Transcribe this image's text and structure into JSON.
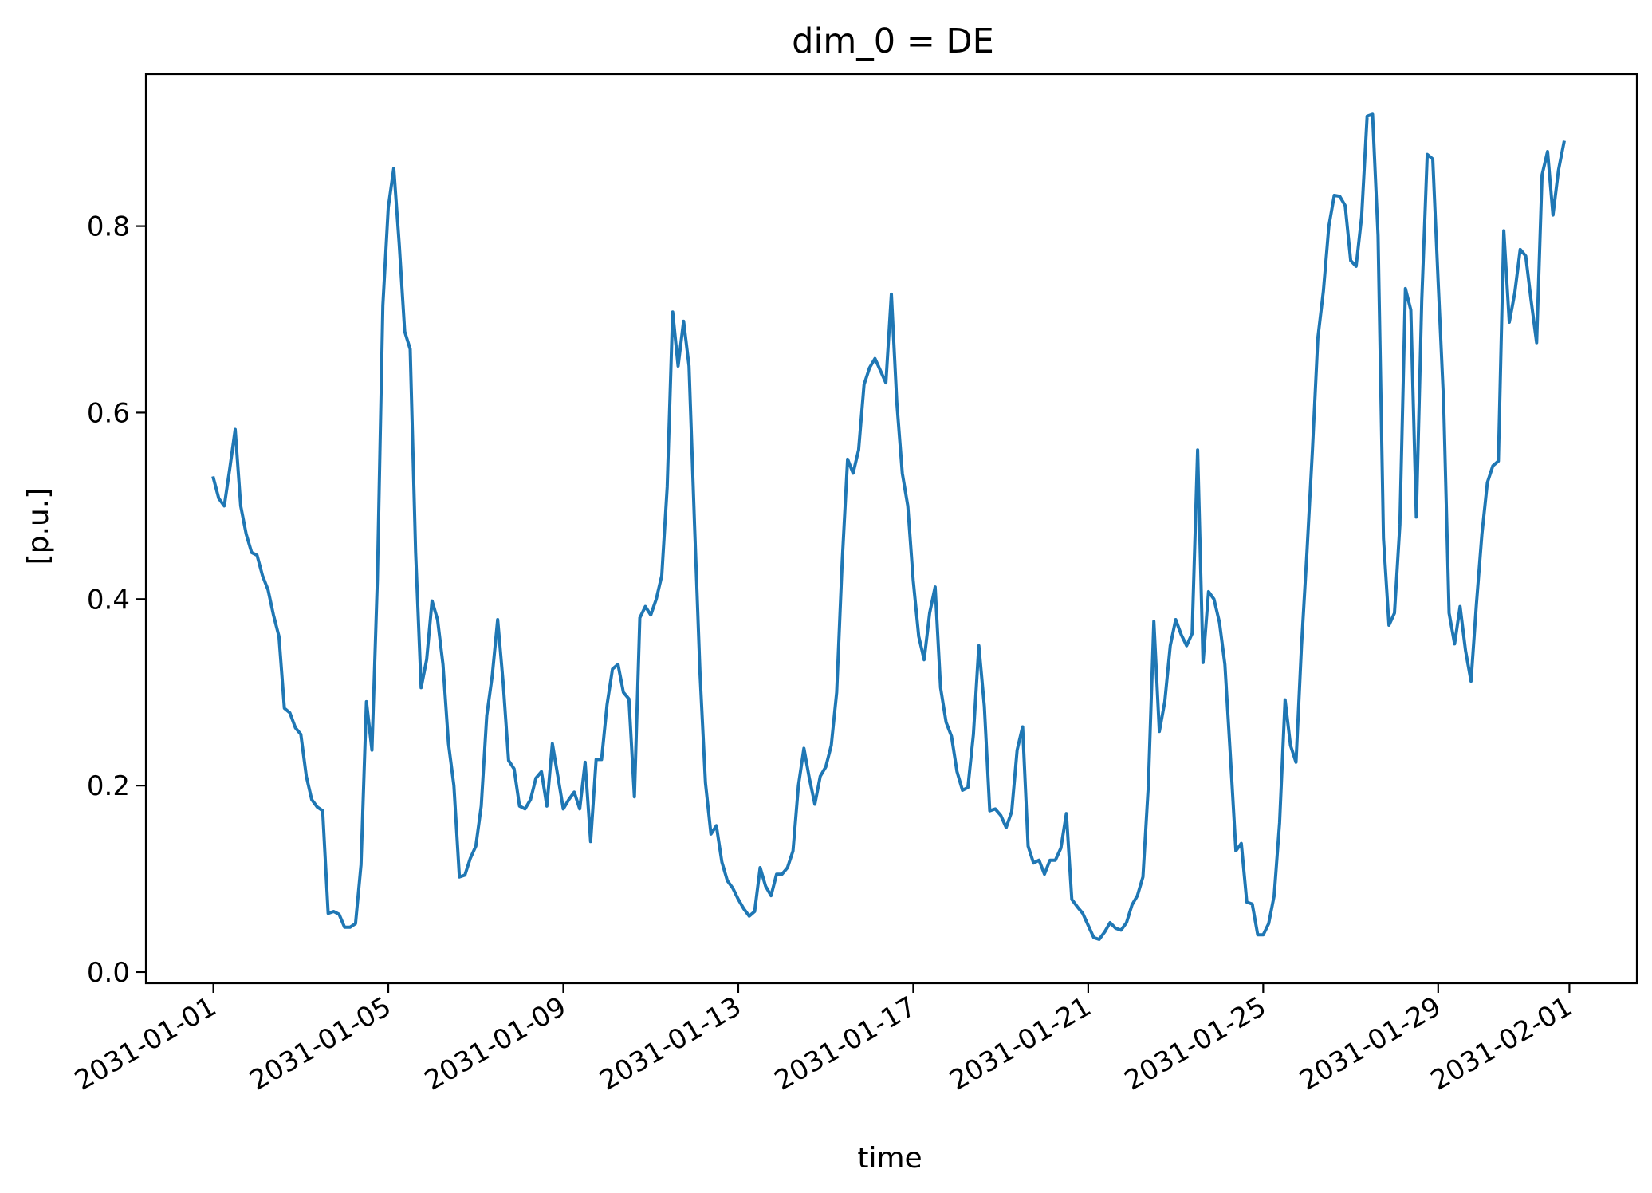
{
  "chart_data": {
    "type": "line",
    "title": "dim_0 = DE",
    "xlabel": "time",
    "ylabel": "[p.u.]",
    "x_ticks": [
      "2031-01-01",
      "2031-01-05",
      "2031-01-09",
      "2031-01-13",
      "2031-01-17",
      "2031-01-21",
      "2031-01-25",
      "2031-01-29",
      "2031-02-01"
    ],
    "y_ticks": [
      "0.0",
      "0.2",
      "0.4",
      "0.6",
      "0.8"
    ],
    "xlim": [
      "2030-12-30T11:00",
      "2031-02-02T13:00"
    ],
    "ylim": [
      -0.012,
      0.963
    ],
    "grid": false,
    "color": "#1f77b4",
    "series": [
      {
        "x": [
          "2031-01-01T00:00",
          "2031-01-01T03:00",
          "2031-01-01T06:00",
          "2031-01-01T09:00",
          "2031-01-01T12:00",
          "2031-01-01T15:00",
          "2031-01-01T18:00",
          "2031-01-01T21:00",
          "2031-01-02T00:00",
          "2031-01-02T03:00",
          "2031-01-02T06:00",
          "2031-01-02T09:00",
          "2031-01-02T12:00",
          "2031-01-02T15:00",
          "2031-01-02T18:00",
          "2031-01-02T21:00",
          "2031-01-03T00:00",
          "2031-01-03T03:00",
          "2031-01-03T06:00",
          "2031-01-03T09:00",
          "2031-01-03T12:00",
          "2031-01-03T15:00",
          "2031-01-03T18:00",
          "2031-01-03T21:00",
          "2031-01-04T00:00",
          "2031-01-04T03:00",
          "2031-01-04T06:00",
          "2031-01-04T09:00",
          "2031-01-04T12:00",
          "2031-01-04T15:00",
          "2031-01-04T18:00",
          "2031-01-04T21:00",
          "2031-01-05T00:00",
          "2031-01-05T03:00",
          "2031-01-05T06:00",
          "2031-01-05T09:00",
          "2031-01-05T12:00",
          "2031-01-05T15:00",
          "2031-01-05T18:00",
          "2031-01-05T21:00",
          "2031-01-06T00:00",
          "2031-01-06T03:00",
          "2031-01-06T06:00",
          "2031-01-06T09:00",
          "2031-01-06T12:00",
          "2031-01-06T15:00",
          "2031-01-06T18:00",
          "2031-01-06T21:00",
          "2031-01-07T00:00",
          "2031-01-07T03:00",
          "2031-01-07T06:00",
          "2031-01-07T09:00",
          "2031-01-07T12:00",
          "2031-01-07T15:00",
          "2031-01-07T18:00",
          "2031-01-07T21:00",
          "2031-01-08T00:00",
          "2031-01-08T03:00",
          "2031-01-08T06:00",
          "2031-01-08T09:00",
          "2031-01-08T12:00",
          "2031-01-08T15:00",
          "2031-01-08T18:00",
          "2031-01-08T21:00",
          "2031-01-09T00:00",
          "2031-01-09T03:00",
          "2031-01-09T06:00",
          "2031-01-09T09:00",
          "2031-01-09T12:00",
          "2031-01-09T15:00",
          "2031-01-09T18:00",
          "2031-01-09T21:00",
          "2031-01-10T00:00",
          "2031-01-10T03:00",
          "2031-01-10T06:00",
          "2031-01-10T09:00",
          "2031-01-10T12:00",
          "2031-01-10T15:00",
          "2031-01-10T18:00",
          "2031-01-10T21:00",
          "2031-01-11T00:00",
          "2031-01-11T03:00",
          "2031-01-11T06:00",
          "2031-01-11T09:00",
          "2031-01-11T12:00",
          "2031-01-11T15:00",
          "2031-01-11T18:00",
          "2031-01-11T21:00",
          "2031-01-12T00:00",
          "2031-01-12T03:00",
          "2031-01-12T06:00",
          "2031-01-12T09:00",
          "2031-01-12T12:00",
          "2031-01-12T15:00",
          "2031-01-12T18:00",
          "2031-01-12T21:00",
          "2031-01-13T00:00",
          "2031-01-13T03:00",
          "2031-01-13T06:00",
          "2031-01-13T09:00",
          "2031-01-13T12:00",
          "2031-01-13T15:00",
          "2031-01-13T18:00",
          "2031-01-13T21:00",
          "2031-01-14T00:00",
          "2031-01-14T03:00",
          "2031-01-14T06:00",
          "2031-01-14T09:00",
          "2031-01-14T12:00",
          "2031-01-14T15:00",
          "2031-01-14T18:00",
          "2031-01-14T21:00",
          "2031-01-15T00:00",
          "2031-01-15T03:00",
          "2031-01-15T06:00",
          "2031-01-15T09:00",
          "2031-01-15T12:00",
          "2031-01-15T15:00",
          "2031-01-15T18:00",
          "2031-01-15T21:00",
          "2031-01-16T00:00",
          "2031-01-16T03:00",
          "2031-01-16T06:00",
          "2031-01-16T09:00",
          "2031-01-16T12:00",
          "2031-01-16T15:00",
          "2031-01-16T18:00",
          "2031-01-16T21:00",
          "2031-01-17T00:00",
          "2031-01-17T03:00",
          "2031-01-17T06:00",
          "2031-01-17T09:00",
          "2031-01-17T12:00",
          "2031-01-17T15:00",
          "2031-01-17T18:00",
          "2031-01-17T21:00",
          "2031-01-18T00:00",
          "2031-01-18T03:00",
          "2031-01-18T06:00",
          "2031-01-18T09:00",
          "2031-01-18T12:00",
          "2031-01-18T15:00",
          "2031-01-18T18:00",
          "2031-01-18T21:00",
          "2031-01-19T00:00",
          "2031-01-19T03:00",
          "2031-01-19T06:00",
          "2031-01-19T09:00",
          "2031-01-19T12:00",
          "2031-01-19T15:00",
          "2031-01-19T18:00",
          "2031-01-19T21:00",
          "2031-01-20T00:00",
          "2031-01-20T03:00",
          "2031-01-20T06:00",
          "2031-01-20T09:00",
          "2031-01-20T12:00",
          "2031-01-20T15:00",
          "2031-01-20T18:00",
          "2031-01-20T21:00",
          "2031-01-21T00:00",
          "2031-01-21T03:00",
          "2031-01-21T06:00",
          "2031-01-21T09:00",
          "2031-01-21T12:00",
          "2031-01-21T15:00",
          "2031-01-21T18:00",
          "2031-01-21T21:00",
          "2031-01-22T00:00",
          "2031-01-22T03:00",
          "2031-01-22T06:00",
          "2031-01-22T09:00",
          "2031-01-22T12:00",
          "2031-01-22T15:00",
          "2031-01-22T18:00",
          "2031-01-22T21:00",
          "2031-01-23T00:00",
          "2031-01-23T03:00",
          "2031-01-23T06:00",
          "2031-01-23T09:00",
          "2031-01-23T12:00",
          "2031-01-23T15:00",
          "2031-01-23T18:00",
          "2031-01-23T21:00",
          "2031-01-24T00:00",
          "2031-01-24T03:00",
          "2031-01-24T06:00",
          "2031-01-24T09:00",
          "2031-01-24T12:00",
          "2031-01-24T15:00",
          "2031-01-24T18:00",
          "2031-01-24T21:00",
          "2031-01-25T00:00",
          "2031-01-25T03:00",
          "2031-01-25T06:00",
          "2031-01-25T09:00",
          "2031-01-25T12:00",
          "2031-01-25T15:00",
          "2031-01-25T18:00",
          "2031-01-25T21:00",
          "2031-01-26T00:00",
          "2031-01-26T03:00",
          "2031-01-26T06:00",
          "2031-01-26T09:00",
          "2031-01-26T12:00",
          "2031-01-26T15:00",
          "2031-01-26T18:00",
          "2031-01-26T21:00",
          "2031-01-27T00:00",
          "2031-01-27T03:00",
          "2031-01-27T06:00",
          "2031-01-27T09:00",
          "2031-01-27T12:00",
          "2031-01-27T15:00",
          "2031-01-27T18:00",
          "2031-01-27T21:00",
          "2031-01-28T00:00",
          "2031-01-28T03:00",
          "2031-01-28T06:00",
          "2031-01-28T09:00",
          "2031-01-28T12:00",
          "2031-01-28T15:00",
          "2031-01-28T18:00",
          "2031-01-28T21:00",
          "2031-01-29T00:00",
          "2031-01-29T03:00",
          "2031-01-29T06:00",
          "2031-01-29T09:00",
          "2031-01-29T12:00",
          "2031-01-29T15:00",
          "2031-01-29T18:00",
          "2031-01-29T21:00",
          "2031-01-30T00:00",
          "2031-01-30T03:00",
          "2031-01-30T06:00",
          "2031-01-30T09:00",
          "2031-01-30T12:00",
          "2031-01-30T15:00",
          "2031-01-30T18:00",
          "2031-01-30T21:00",
          "2031-01-31T00:00",
          "2031-01-31T03:00",
          "2031-01-31T06:00",
          "2031-01-31T09:00",
          "2031-01-31T12:00",
          "2031-01-31T15:00",
          "2031-01-31T18:00",
          "2031-01-31T21:00"
        ],
        "values": [
          0.53,
          0.508,
          0.5,
          0.54,
          0.582,
          0.5,
          0.47,
          0.45,
          0.447,
          0.425,
          0.41,
          0.383,
          0.36,
          0.283,
          0.278,
          0.262,
          0.255,
          0.21,
          0.185,
          0.177,
          0.173,
          0.063,
          0.065,
          0.062,
          0.048,
          0.048,
          0.052,
          0.115,
          0.29,
          0.238,
          0.42,
          0.715,
          0.82,
          0.862,
          0.78,
          0.687,
          0.668,
          0.45,
          0.305,
          0.335,
          0.398,
          0.378,
          0.33,
          0.245,
          0.2,
          0.102,
          0.104,
          0.122,
          0.135,
          0.178,
          0.275,
          0.318,
          0.378,
          0.31,
          0.227,
          0.218,
          0.178,
          0.175,
          0.185,
          0.208,
          0.215,
          0.178,
          0.245,
          0.21,
          0.175,
          0.185,
          0.193,
          0.175,
          0.225,
          0.14,
          0.228,
          0.228,
          0.287,
          0.325,
          0.33,
          0.3,
          0.293,
          0.188,
          0.38,
          0.392,
          0.383,
          0.4,
          0.425,
          0.52,
          0.708,
          0.65,
          0.698,
          0.65,
          0.48,
          0.32,
          0.203,
          0.148,
          0.157,
          0.118,
          0.098,
          0.09,
          0.078,
          0.068,
          0.06,
          0.065,
          0.112,
          0.092,
          0.082,
          0.105,
          0.105,
          0.112,
          0.13,
          0.2,
          0.24,
          0.208,
          0.18,
          0.21,
          0.22,
          0.243,
          0.3,
          0.44,
          0.55,
          0.535,
          0.56,
          0.63,
          0.648,
          0.658,
          0.645,
          0.632,
          0.727,
          0.61,
          0.535,
          0.5,
          0.42,
          0.36,
          0.335,
          0.385,
          0.413,
          0.305,
          0.268,
          0.253,
          0.215,
          0.195,
          0.198,
          0.255,
          0.35,
          0.285,
          0.173,
          0.175,
          0.168,
          0.155,
          0.172,
          0.238,
          0.263,
          0.135,
          0.117,
          0.12,
          0.105,
          0.12,
          0.12,
          0.133,
          0.17,
          0.078,
          0.07,
          0.063,
          0.05,
          0.037,
          0.035,
          0.043,
          0.053,
          0.047,
          0.045,
          0.053,
          0.072,
          0.082,
          0.102,
          0.2,
          0.376,
          0.258,
          0.29,
          0.35,
          0.378,
          0.362,
          0.35,
          0.363,
          0.56,
          0.332,
          0.408,
          0.4,
          0.375,
          0.33,
          0.232,
          0.13,
          0.138,
          0.075,
          0.073,
          0.04,
          0.04,
          0.052,
          0.082,
          0.16,
          0.292,
          0.243,
          0.225,
          0.35,
          0.45,
          0.56,
          0.68,
          0.73,
          0.8,
          0.833,
          0.832,
          0.822,
          0.763,
          0.757,
          0.81,
          0.918,
          0.92,
          0.79,
          0.465,
          0.372,
          0.385,
          0.48,
          0.733,
          0.71,
          0.488,
          0.72,
          0.877,
          0.872,
          0.74,
          0.61,
          0.385,
          0.352,
          0.392,
          0.345,
          0.312,
          0.395,
          0.47,
          0.525,
          0.543,
          0.548,
          0.795,
          0.697,
          0.728,
          0.775,
          0.768,
          0.72,
          0.675,
          0.855,
          0.88,
          0.812,
          0.86,
          0.89
        ]
      }
    ]
  }
}
